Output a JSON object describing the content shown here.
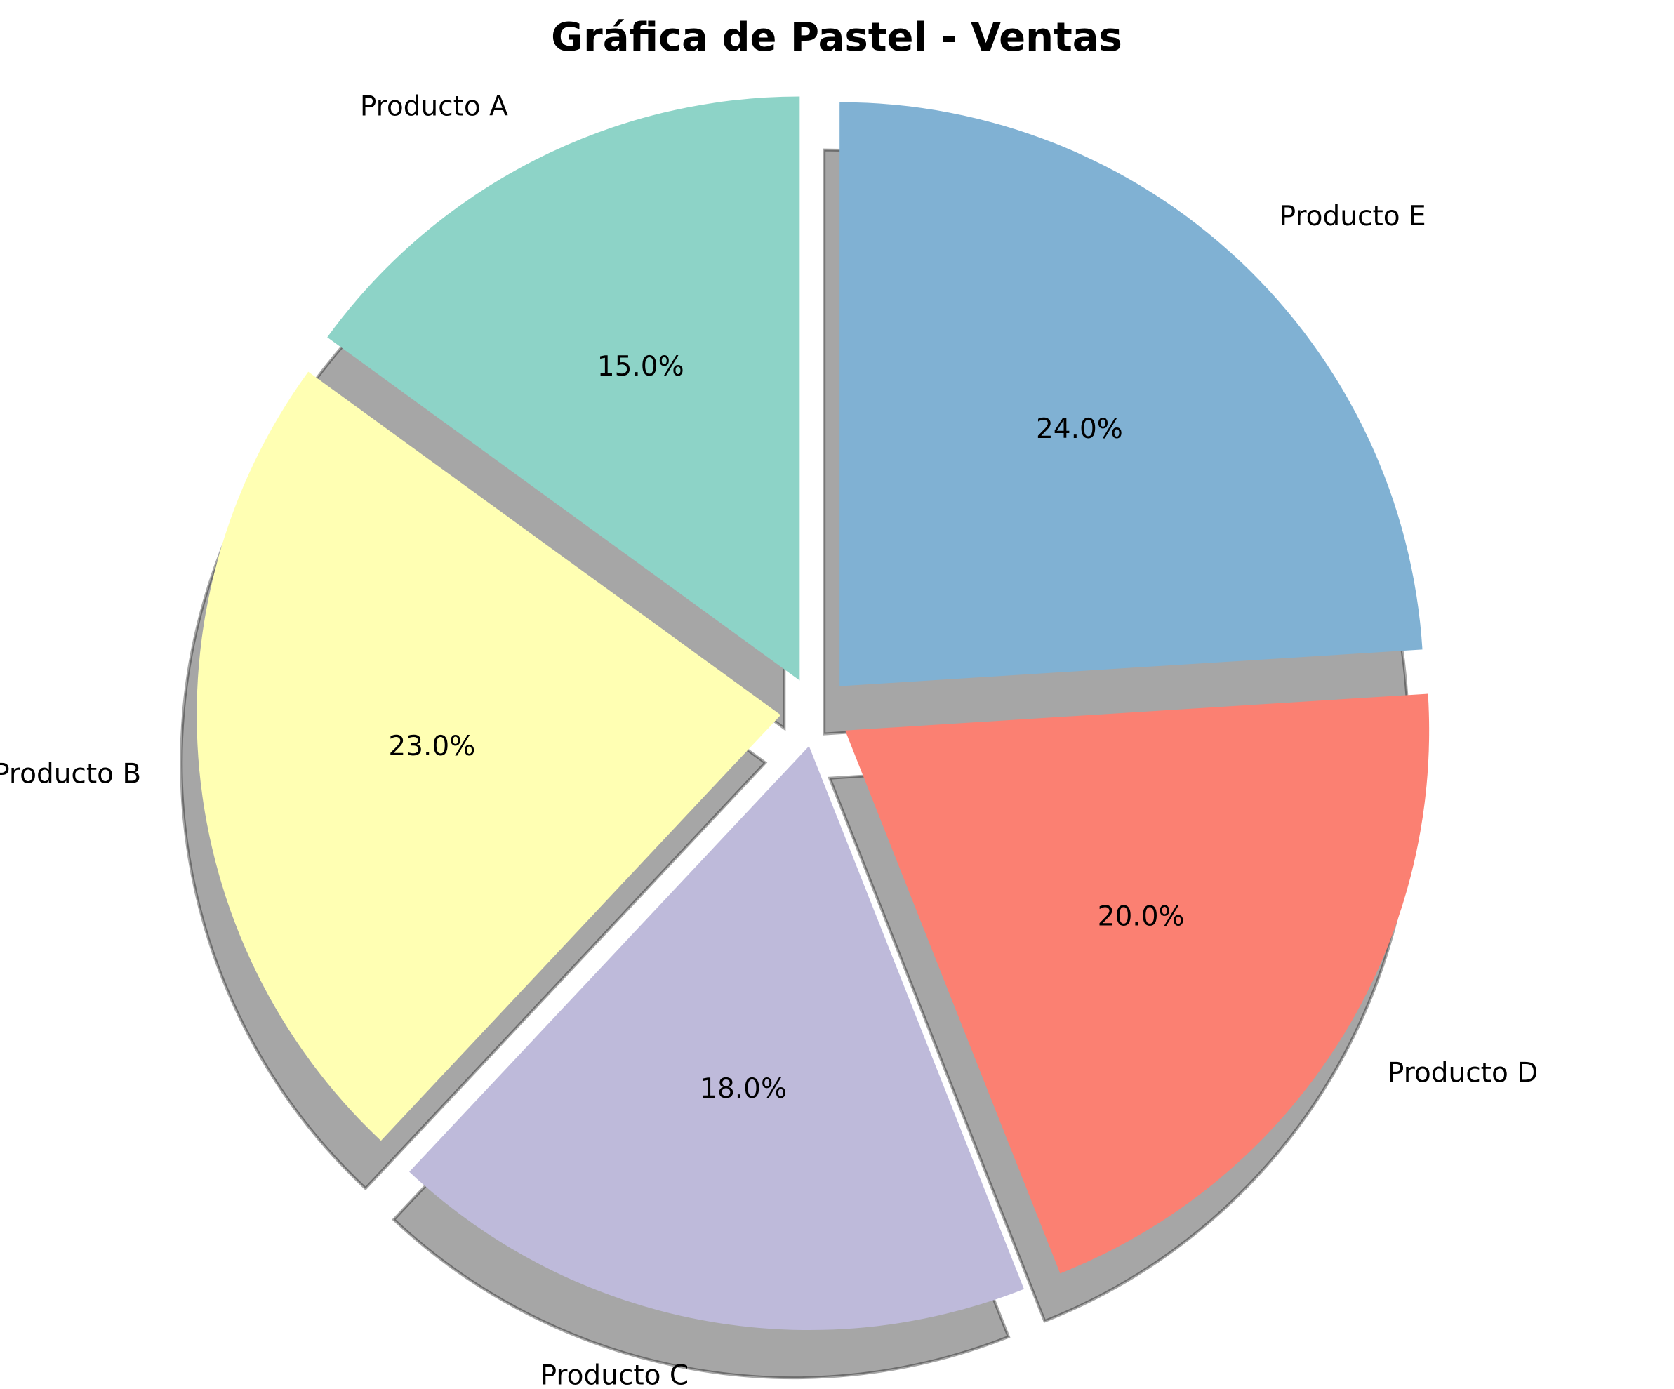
{
  "chart_data": {
    "type": "pie",
    "title": "Gráfica de Pastel - Ventas",
    "categories": [
      "Producto A",
      "Producto B",
      "Producto C",
      "Producto D",
      "Producto E"
    ],
    "values": [
      15.0,
      23.0,
      18.0,
      20.0,
      24.0
    ],
    "value_labels": [
      "15.0%",
      "23.0%",
      "18.0%",
      "20.0%",
      "24.0%"
    ],
    "colors": [
      "#8dd3c7",
      "#ffffb3",
      "#bebada",
      "#fb8072",
      "#80b1d3"
    ],
    "shadow": true,
    "exploded": true,
    "start_angle_deg": 90,
    "direction": "counterclockwise"
  }
}
